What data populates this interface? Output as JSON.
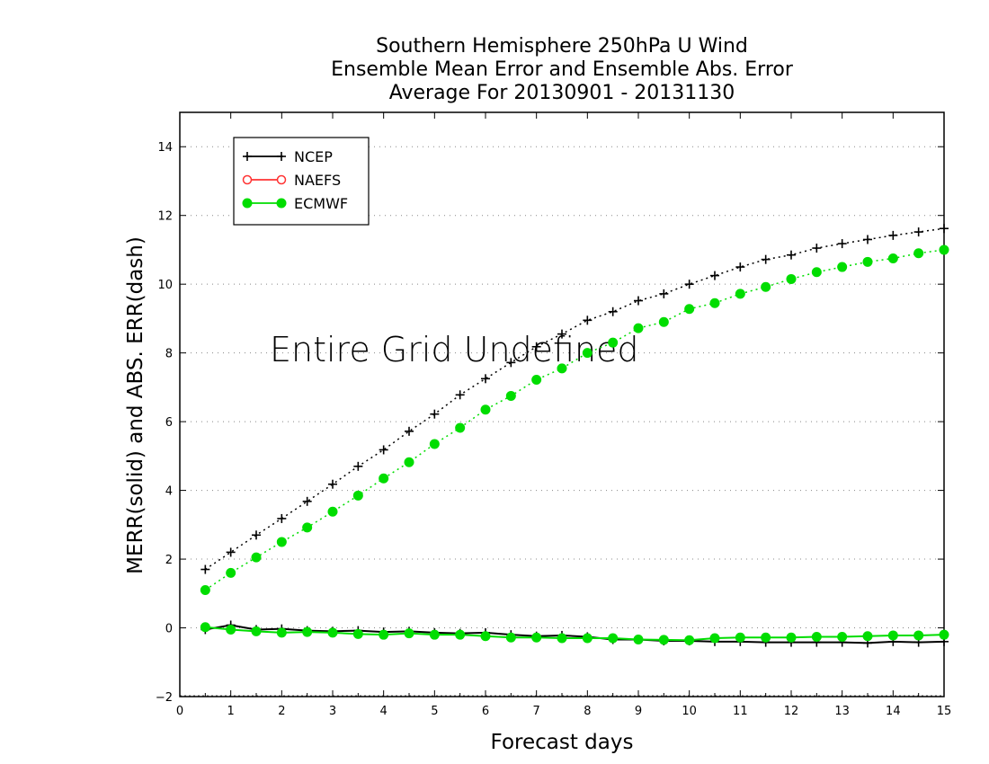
{
  "chart_data": {
    "type": "line",
    "title": [
      "Southern Hemisphere 250hPa U Wind",
      "Ensemble Mean Error and Ensemble Abs. Error",
      "Average For 20130901 - 20131130"
    ],
    "xlabel": "Forecast days",
    "ylabel": "MERR(solid) and ABS. ERR(dash)",
    "xlim": [
      0,
      15
    ],
    "ylim": [
      -2,
      15
    ],
    "xticks": [
      "0",
      "1",
      "2",
      "3",
      "4",
      "5",
      "6",
      "7",
      "8",
      "9",
      "10",
      "11",
      "12",
      "13",
      "14",
      "15"
    ],
    "yticks": [
      "−2",
      "0",
      "2",
      "4",
      "6",
      "8",
      "10",
      "12",
      "14"
    ],
    "grid": "horizontal-dotted",
    "legend_placement": "top-left",
    "annotation": "Entire Grid Undefined",
    "x": [
      0.5,
      1,
      1.5,
      2,
      2.5,
      3,
      3.5,
      4,
      4.5,
      5,
      5.5,
      6,
      6.5,
      7,
      7.5,
      8,
      8.5,
      9,
      9.5,
      10,
      10.5,
      11,
      11.5,
      12,
      12.5,
      13,
      13.5,
      14,
      14.5,
      15
    ],
    "series": [
      {
        "name": "NCEP",
        "color": "#000000",
        "marker": "plus",
        "merr": [
          -0.05,
          0.08,
          -0.05,
          -0.03,
          -0.08,
          -0.1,
          -0.08,
          -0.12,
          -0.1,
          -0.14,
          -0.16,
          -0.14,
          -0.2,
          -0.24,
          -0.22,
          -0.26,
          -0.34,
          -0.34,
          -0.38,
          -0.38,
          -0.4,
          -0.4,
          -0.42,
          -0.42,
          -0.42,
          -0.42,
          -0.44,
          -0.4,
          -0.42,
          -0.4
        ],
        "abserr": [
          1.7,
          2.2,
          2.7,
          3.18,
          3.68,
          4.18,
          4.7,
          5.18,
          5.72,
          6.22,
          6.78,
          7.25,
          7.72,
          8.18,
          8.55,
          8.95,
          9.2,
          9.52,
          9.72,
          10.0,
          10.25,
          10.5,
          10.72,
          10.85,
          11.05,
          11.18,
          11.3,
          11.42,
          11.52,
          11.62
        ]
      },
      {
        "name": "NAEFS",
        "color": "#ff3333",
        "marker": "open-circle",
        "merr": [],
        "abserr": []
      },
      {
        "name": "ECMWF",
        "color": "#00dd00",
        "marker": "filled-circle",
        "merr": [
          0.02,
          -0.05,
          -0.1,
          -0.14,
          -0.12,
          -0.14,
          -0.18,
          -0.2,
          -0.16,
          -0.2,
          -0.2,
          -0.24,
          -0.28,
          -0.28,
          -0.3,
          -0.3,
          -0.3,
          -0.34,
          -0.35,
          -0.36,
          -0.3,
          -0.28,
          -0.28,
          -0.28,
          -0.26,
          -0.26,
          -0.24,
          -0.22,
          -0.22,
          -0.2
        ],
        "abserr": [
          1.1,
          1.6,
          2.05,
          2.5,
          2.92,
          3.38,
          3.85,
          4.35,
          4.82,
          5.35,
          5.82,
          6.35,
          6.75,
          7.22,
          7.55,
          8.0,
          8.3,
          8.72,
          8.9,
          9.28,
          9.45,
          9.72,
          9.92,
          10.15,
          10.35,
          10.5,
          10.65,
          10.75,
          10.9,
          11.0
        ]
      }
    ]
  }
}
